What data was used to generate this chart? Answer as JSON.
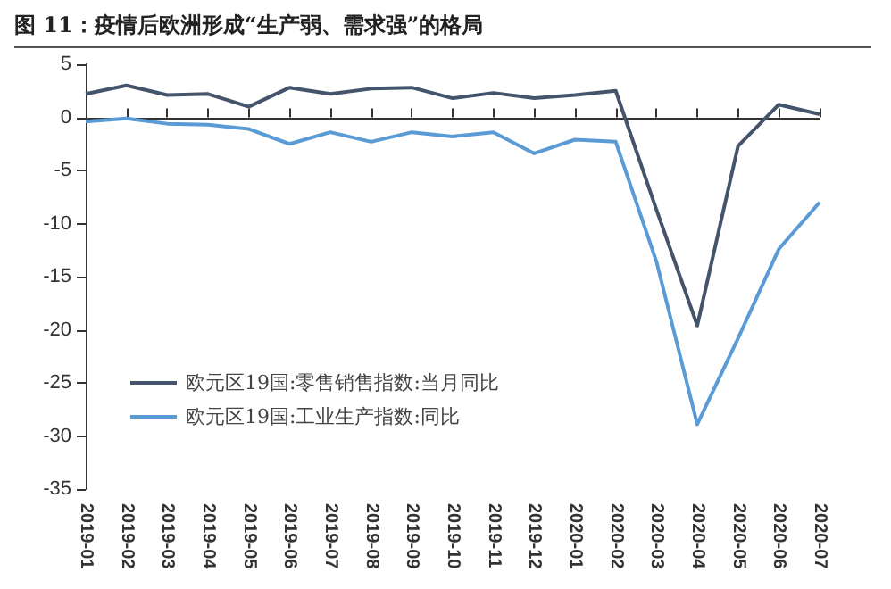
{
  "chart_data": {
    "type": "line",
    "title": "图 11：疫情后欧洲形成“生产弱、需求强”的格局",
    "categories": [
      "2019-01",
      "2019-02",
      "2019-03",
      "2019-04",
      "2019-05",
      "2019-06",
      "2019-07",
      "2019-08",
      "2019-09",
      "2019-10",
      "2019-11",
      "2019-12",
      "2020-01",
      "2020-02",
      "2020-03",
      "2020-04",
      "2020-05",
      "2020-06",
      "2020-07"
    ],
    "series": [
      {
        "name": "欧元区19国:零售销售指数:当月同比",
        "color": "#44546a",
        "values": [
          2.2,
          3.0,
          2.1,
          2.2,
          1.0,
          2.8,
          2.2,
          2.7,
          2.8,
          1.8,
          2.3,
          1.8,
          2.1,
          2.5,
          -8.7,
          -19.6,
          -2.7,
          1.2,
          0.3
        ]
      },
      {
        "name": "欧元区19国:工业生产指数:同比",
        "color": "#5b9bd5",
        "values": [
          -0.4,
          -0.1,
          -0.6,
          -0.7,
          -1.1,
          -2.5,
          -1.4,
          -2.3,
          -1.4,
          -1.8,
          -1.4,
          -3.4,
          -2.1,
          -2.3,
          -13.6,
          -28.9,
          -20.8,
          -12.4,
          -8.0
        ]
      }
    ],
    "ylim": [
      -35,
      5
    ],
    "yticks": [
      -35,
      -30,
      -25,
      -20,
      -15,
      -10,
      -5,
      0,
      5
    ],
    "legend": "bottom left",
    "marker": "none",
    "line_style": "solid"
  }
}
